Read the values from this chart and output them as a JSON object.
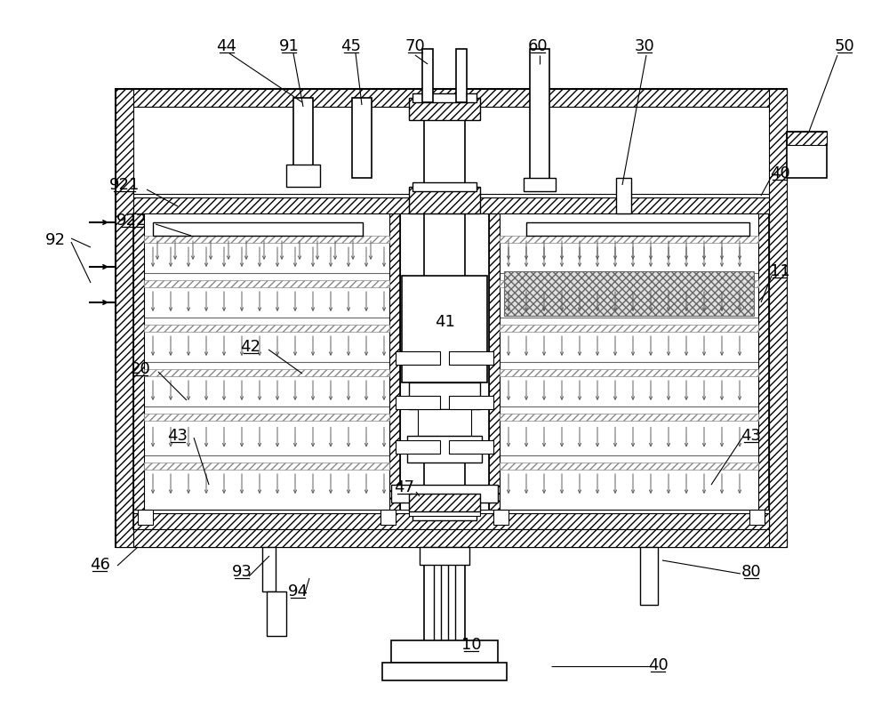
{
  "bg_color": "#ffffff",
  "fig_width": 10.0,
  "fig_height": 7.96,
  "dpi": 100
}
